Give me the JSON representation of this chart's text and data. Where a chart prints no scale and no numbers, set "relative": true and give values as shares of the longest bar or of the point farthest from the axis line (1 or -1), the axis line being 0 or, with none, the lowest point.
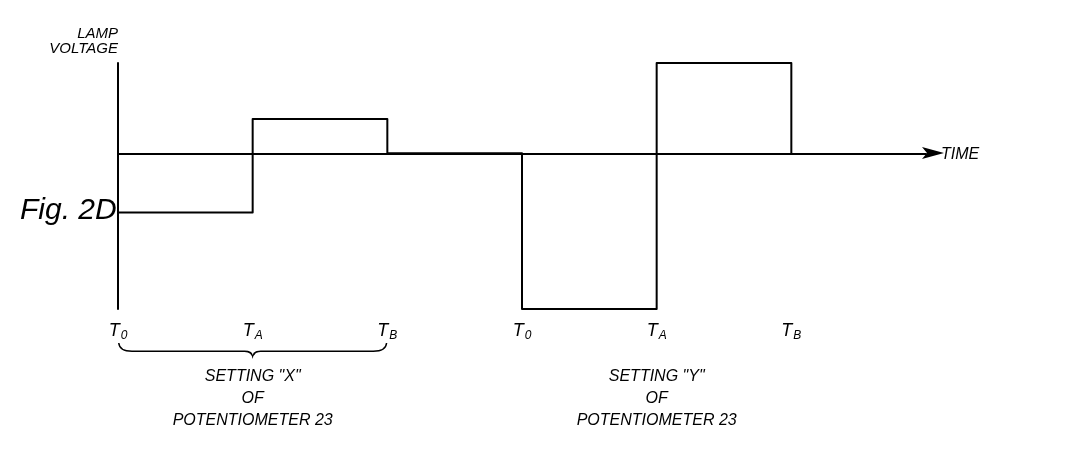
{
  "chart_data": {
    "type": "step",
    "relative": true,
    "xlabel": "TIME",
    "ylabel": "LAMP VOLTAGE",
    "categories": [
      "T$_{0}$",
      "T$_{A}$",
      "T$_{B}$",
      "T$_{0}$",
      "T$_{A}$",
      "T$_{B}$"
    ],
    "values": [
      -0.38,
      0.22,
      0,
      -1,
      0.58,
      0
    ],
    "color": "#000000",
    "grid": false,
    "annotations": [
      "Fig. 2D",
      "SETTING \"X\" OF POTENTIOMETER 23",
      "SETTING \"Y\" OF POTENTIOMETER 23"
    ]
  }
}
